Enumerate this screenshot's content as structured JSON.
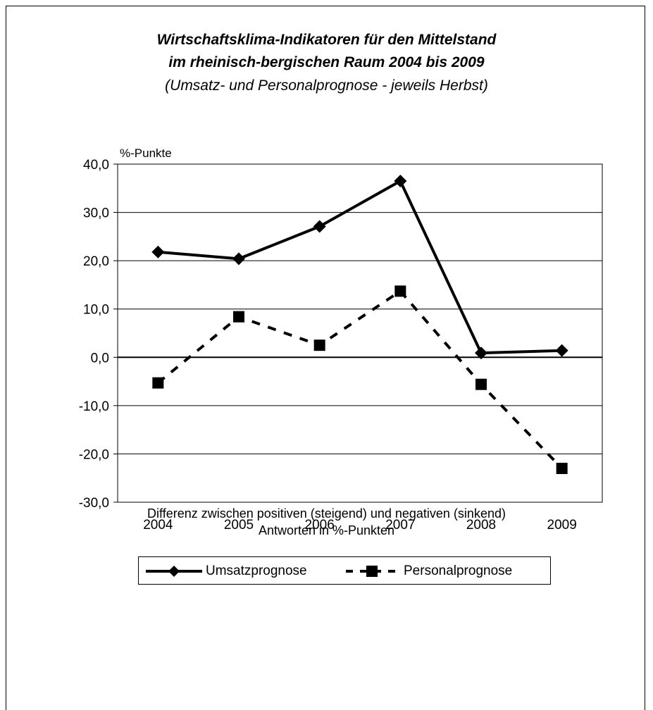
{
  "chart_data": {
    "type": "line",
    "title": "Wirtschaftsklima-Indikatoren für den Mittelstand",
    "title_line2": "im rheinisch-bergischen Raum 2004 bis 2009",
    "subtitle": "(Umsatz- und Personalprognose - jeweils Herbst)",
    "ylabel": "%-Punkte",
    "xlabel": "",
    "ylim": [
      -30,
      40
    ],
    "ytick_step": 10,
    "ytick_labels": [
      "40,0",
      "30,0",
      "20,0",
      "10,0",
      "0,0",
      "-10,0",
      "-20,0",
      "-30,0"
    ],
    "categories": [
      "2004",
      "2005",
      "2006",
      "2007",
      "2008",
      "2009"
    ],
    "grid": true,
    "legend_position": "bottom",
    "series": [
      {
        "name": "Umsatzprognose",
        "values": [
          21.8,
          20.4,
          27.1,
          36.5,
          0.9,
          1.4
        ],
        "color": "#000000",
        "line": "solid",
        "marker": "diamond"
      },
      {
        "name": "Personalprognose",
        "values": [
          -5.3,
          8.4,
          2.5,
          13.7,
          -5.6,
          -23.0
        ],
        "color": "#000000",
        "line": "dashed",
        "marker": "square"
      }
    ]
  },
  "footnote": {
    "line1": "Differenz zwischen positiven (steigend) und negativen (sinkend)",
    "line2": "Antworten in %-Punkten"
  }
}
